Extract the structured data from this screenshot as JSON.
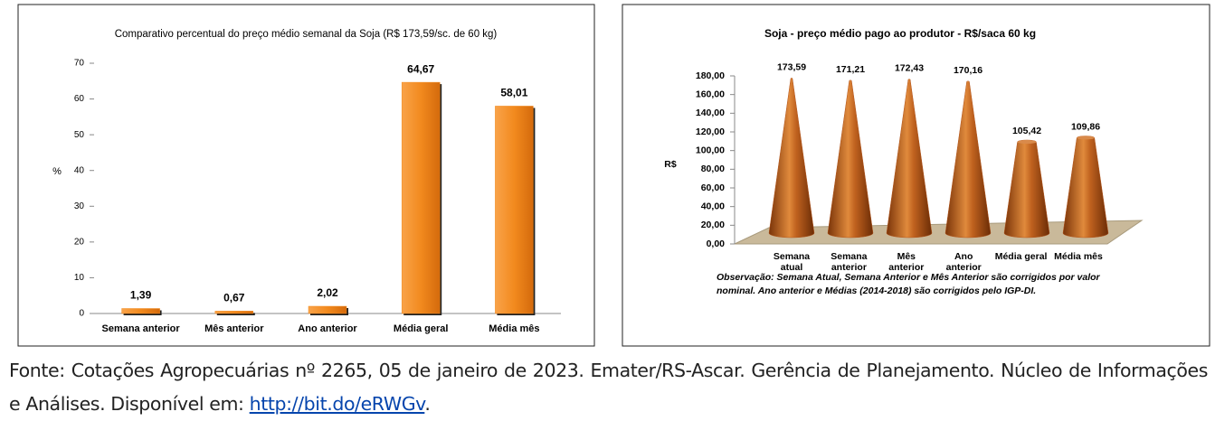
{
  "chart_data": [
    {
      "type": "bar",
      "title": "Comparativo percentual do preço médio semanal da Soja (R$ 173,59/sc. de 60 kg)",
      "ylabel": "%",
      "categories": [
        "Semana anterior",
        "Mês anterior",
        "Ano anterior",
        "Média geral",
        "Média mês"
      ],
      "values": [
        1.39,
        0.67,
        2.02,
        64.67,
        58.01
      ],
      "value_labels": [
        "1,39",
        "0,67",
        "2,02",
        "64,67",
        "58,01"
      ],
      "color": "#f28a1e",
      "ylim": [
        0,
        70
      ],
      "yticks": [
        0,
        10,
        20,
        30,
        40,
        50,
        60,
        70
      ]
    },
    {
      "type": "cone",
      "title": "Soja - preço médio pago ao produtor - R$/saca 60 kg",
      "ylabel": "R$",
      "categories": [
        "Semana atual",
        "Semana anterior",
        "Mês anterior",
        "Ano anterior",
        "Média geral",
        "Média mês"
      ],
      "values": [
        173.59,
        171.21,
        172.43,
        170.16,
        105.42,
        109.86
      ],
      "value_labels": [
        "173,59",
        "171,21",
        "172,43",
        "170,16",
        "105,42",
        "109,86"
      ],
      "color": "#b4541a",
      "ylim": [
        0,
        180
      ],
      "yticks": [
        {
          "value": 0,
          "label": "0,00"
        },
        {
          "value": 20,
          "label": "20,00"
        },
        {
          "value": 40,
          "label": "40,00"
        },
        {
          "value": 60,
          "label": "60,00"
        },
        {
          "value": 80,
          "label": "80,00"
        },
        {
          "value": 100,
          "label": "100,00"
        },
        {
          "value": 120,
          "label": "120,00"
        },
        {
          "value": 140,
          "label": "140,00"
        },
        {
          "value": 160,
          "label": "160,00"
        },
        {
          "value": 180,
          "label": "180,00"
        }
      ],
      "annotation": "Observação: Semana Atual, Semana Anterior e Mês Anterior são corrigidos por valor nominal. Ano anterior e Médias (2014-2018) são corrigidos pelo IGP-DI."
    }
  ],
  "caption": {
    "text": "Fonte: Cotações Agropecuárias nº 2265, 05 de janeiro de 2023. Emater/RS-Ascar. Gerência de Planejamento. Núcleo de Informações e Análises. Disponível em: ",
    "link": "http://bit.do/eRWGv",
    "end": "."
  }
}
